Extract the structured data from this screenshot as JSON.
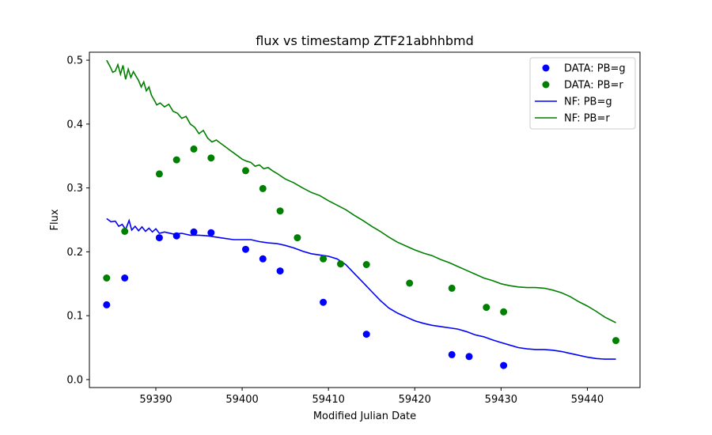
{
  "chart_data": {
    "type": "scatter",
    "title": "flux vs timestamp ZTF21abhhbmd",
    "xlabel": "Modified Julian Date",
    "ylabel": "Flux",
    "xlim": [
      59382.3,
      59446.1
    ],
    "ylim": [
      -0.0125,
      0.5125
    ],
    "xticks": [
      59390,
      59400,
      59410,
      59420,
      59430,
      59440
    ],
    "yticks": [
      0.0,
      0.1,
      0.2,
      0.3,
      0.4,
      0.5
    ],
    "xtick_labels": [
      "59390",
      "59400",
      "59410",
      "59420",
      "59430",
      "59440"
    ],
    "ytick_labels": [
      "0.0",
      "0.1",
      "0.2",
      "0.3",
      "0.4",
      "0.5"
    ],
    "grid": false,
    "legend_position": "top-right",
    "colors": {
      "g": "#0000ff",
      "r": "#008000"
    },
    "series": [
      {
        "name": "DATA: PB=g",
        "kind": "scatter",
        "color": "#0000ff",
        "points": [
          [
            59384.3,
            0.117
          ],
          [
            59386.4,
            0.159
          ],
          [
            59390.4,
            0.222
          ],
          [
            59392.4,
            0.225
          ],
          [
            59394.4,
            0.231
          ],
          [
            59396.4,
            0.23
          ],
          [
            59400.4,
            0.204
          ],
          [
            59402.4,
            0.189
          ],
          [
            59404.4,
            0.17
          ],
          [
            59409.4,
            0.121
          ],
          [
            59414.4,
            0.071
          ],
          [
            59424.3,
            0.039
          ],
          [
            59426.3,
            0.036
          ],
          [
            59430.3,
            0.022
          ]
        ]
      },
      {
        "name": "DATA: PB=r",
        "kind": "scatter",
        "color": "#008000",
        "points": [
          [
            59384.3,
            0.159
          ],
          [
            59386.4,
            0.232
          ],
          [
            59390.4,
            0.322
          ],
          [
            59392.4,
            0.344
          ],
          [
            59394.4,
            0.361
          ],
          [
            59396.4,
            0.347
          ],
          [
            59400.4,
            0.327
          ],
          [
            59402.4,
            0.299
          ],
          [
            59404.4,
            0.264
          ],
          [
            59406.4,
            0.222
          ],
          [
            59409.4,
            0.189
          ],
          [
            59411.4,
            0.181
          ],
          [
            59414.4,
            0.18
          ],
          [
            59419.4,
            0.151
          ],
          [
            59424.3,
            0.143
          ],
          [
            59428.3,
            0.113
          ],
          [
            59430.3,
            0.106
          ],
          [
            59443.3,
            0.061
          ]
        ]
      },
      {
        "name": "NF: PB=g",
        "kind": "line",
        "color": "#0000ff",
        "points": [
          [
            59384.3,
            0.252
          ],
          [
            59384.8,
            0.247
          ],
          [
            59385.3,
            0.248
          ],
          [
            59385.7,
            0.24
          ],
          [
            59386.1,
            0.243
          ],
          [
            59386.5,
            0.235
          ],
          [
            59386.9,
            0.249
          ],
          [
            59387.2,
            0.234
          ],
          [
            59387.6,
            0.24
          ],
          [
            59388.0,
            0.233
          ],
          [
            59388.4,
            0.239
          ],
          [
            59388.8,
            0.232
          ],
          [
            59389.2,
            0.237
          ],
          [
            59389.6,
            0.231
          ],
          [
            59390.0,
            0.236
          ],
          [
            59390.4,
            0.229
          ],
          [
            59391.0,
            0.231
          ],
          [
            59392.0,
            0.228
          ],
          [
            59393.0,
            0.229
          ],
          [
            59394.0,
            0.226
          ],
          [
            59395.0,
            0.226
          ],
          [
            59396.0,
            0.225
          ],
          [
            59397.0,
            0.223
          ],
          [
            59398.0,
            0.221
          ],
          [
            59399.0,
            0.219
          ],
          [
            59400.0,
            0.219
          ],
          [
            59401.0,
            0.219
          ],
          [
            59402.0,
            0.216
          ],
          [
            59403.0,
            0.214
          ],
          [
            59404.0,
            0.213
          ],
          [
            59405.0,
            0.21
          ],
          [
            59406.0,
            0.206
          ],
          [
            59407.0,
            0.201
          ],
          [
            59408.0,
            0.197
          ],
          [
            59409.0,
            0.195
          ],
          [
            59410.0,
            0.193
          ],
          [
            59411.0,
            0.189
          ],
          [
            59412.0,
            0.18
          ],
          [
            59413.0,
            0.166
          ],
          [
            59414.0,
            0.152
          ],
          [
            59415.0,
            0.138
          ],
          [
            59416.0,
            0.124
          ],
          [
            59417.0,
            0.112
          ],
          [
            59418.0,
            0.104
          ],
          [
            59419.0,
            0.098
          ],
          [
            59420.0,
            0.092
          ],
          [
            59421.0,
            0.088
          ],
          [
            59422.0,
            0.085
          ],
          [
            59423.0,
            0.083
          ],
          [
            59424.0,
            0.081
          ],
          [
            59425.0,
            0.079
          ],
          [
            59426.0,
            0.075
          ],
          [
            59427.0,
            0.07
          ],
          [
            59428.0,
            0.067
          ],
          [
            59429.0,
            0.062
          ],
          [
            59430.0,
            0.058
          ],
          [
            59431.0,
            0.054
          ],
          [
            59432.0,
            0.05
          ],
          [
            59433.0,
            0.048
          ],
          [
            59434.0,
            0.047
          ],
          [
            59435.0,
            0.047
          ],
          [
            59436.0,
            0.046
          ],
          [
            59437.0,
            0.044
          ],
          [
            59438.0,
            0.041
          ],
          [
            59439.0,
            0.038
          ],
          [
            59440.0,
            0.035
          ],
          [
            59441.0,
            0.033
          ],
          [
            59442.0,
            0.032
          ],
          [
            59443.3,
            0.032
          ]
        ]
      },
      {
        "name": "NF: PB=r",
        "kind": "line",
        "color": "#008000",
        "points": [
          [
            59384.3,
            0.5
          ],
          [
            59384.7,
            0.49
          ],
          [
            59385.0,
            0.481
          ],
          [
            59385.3,
            0.483
          ],
          [
            59385.6,
            0.493
          ],
          [
            59385.9,
            0.478
          ],
          [
            59386.2,
            0.492
          ],
          [
            59386.5,
            0.47
          ],
          [
            59386.8,
            0.486
          ],
          [
            59387.1,
            0.473
          ],
          [
            59387.4,
            0.482
          ],
          [
            59387.7,
            0.475
          ],
          [
            59388.0,
            0.468
          ],
          [
            59388.3,
            0.458
          ],
          [
            59388.6,
            0.466
          ],
          [
            59388.9,
            0.452
          ],
          [
            59389.2,
            0.458
          ],
          [
            59389.5,
            0.445
          ],
          [
            59389.8,
            0.438
          ],
          [
            59390.1,
            0.43
          ],
          [
            59390.5,
            0.433
          ],
          [
            59391.0,
            0.427
          ],
          [
            59391.5,
            0.431
          ],
          [
            59392.0,
            0.42
          ],
          [
            59392.5,
            0.417
          ],
          [
            59393.0,
            0.409
          ],
          [
            59393.5,
            0.412
          ],
          [
            59394.0,
            0.4
          ],
          [
            59394.5,
            0.395
          ],
          [
            59395.0,
            0.385
          ],
          [
            59395.5,
            0.39
          ],
          [
            59396.0,
            0.378
          ],
          [
            59396.5,
            0.372
          ],
          [
            59397.0,
            0.375
          ],
          [
            59397.5,
            0.37
          ],
          [
            59398.0,
            0.365
          ],
          [
            59398.5,
            0.36
          ],
          [
            59399.0,
            0.355
          ],
          [
            59399.5,
            0.35
          ],
          [
            59400.0,
            0.345
          ],
          [
            59400.5,
            0.342
          ],
          [
            59401.0,
            0.34
          ],
          [
            59401.5,
            0.334
          ],
          [
            59402.0,
            0.336
          ],
          [
            59402.5,
            0.33
          ],
          [
            59403.0,
            0.332
          ],
          [
            59403.5,
            0.327
          ],
          [
            59404.0,
            0.323
          ],
          [
            59405.0,
            0.314
          ],
          [
            59406.0,
            0.308
          ],
          [
            59407.0,
            0.3
          ],
          [
            59408.0,
            0.293
          ],
          [
            59409.0,
            0.288
          ],
          [
            59410.0,
            0.28
          ],
          [
            59411.0,
            0.273
          ],
          [
            59412.0,
            0.266
          ],
          [
            59413.0,
            0.257
          ],
          [
            59414.0,
            0.249
          ],
          [
            59415.0,
            0.24
          ],
          [
            59416.0,
            0.232
          ],
          [
            59417.0,
            0.223
          ],
          [
            59418.0,
            0.215
          ],
          [
            59419.0,
            0.209
          ],
          [
            59420.0,
            0.203
          ],
          [
            59421.0,
            0.198
          ],
          [
            59422.0,
            0.194
          ],
          [
            59423.0,
            0.188
          ],
          [
            59424.0,
            0.183
          ],
          [
            59425.0,
            0.177
          ],
          [
            59426.0,
            0.171
          ],
          [
            59427.0,
            0.165
          ],
          [
            59428.0,
            0.159
          ],
          [
            59429.0,
            0.155
          ],
          [
            59430.0,
            0.15
          ],
          [
            59431.0,
            0.147
          ],
          [
            59432.0,
            0.145
          ],
          [
            59433.0,
            0.144
          ],
          [
            59434.0,
            0.144
          ],
          [
            59435.0,
            0.143
          ],
          [
            59436.0,
            0.14
          ],
          [
            59437.0,
            0.136
          ],
          [
            59438.0,
            0.13
          ],
          [
            59439.0,
            0.122
          ],
          [
            59440.0,
            0.115
          ],
          [
            59441.0,
            0.107
          ],
          [
            59442.0,
            0.098
          ],
          [
            59443.3,
            0.089
          ]
        ]
      }
    ]
  }
}
